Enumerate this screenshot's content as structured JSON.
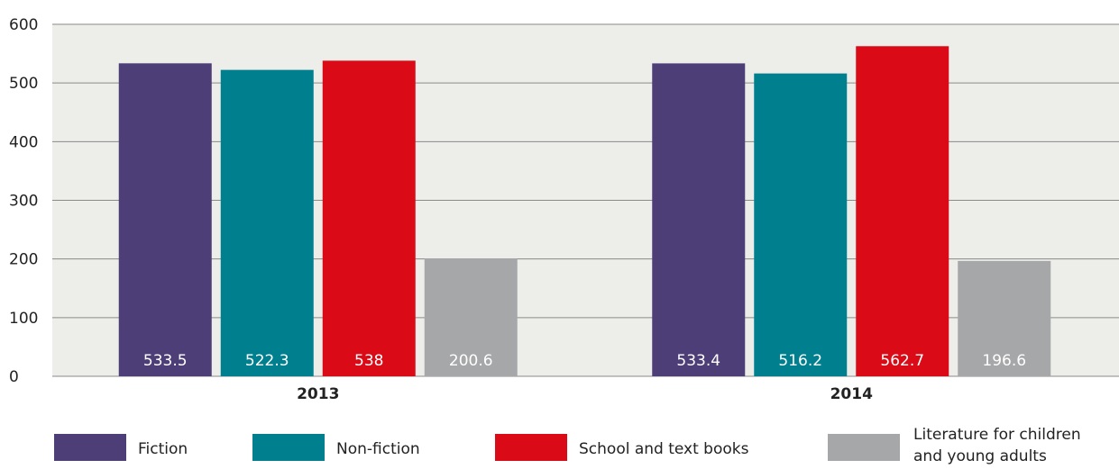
{
  "chart_data": {
    "type": "bar",
    "categories": [
      "2013",
      "2014"
    ],
    "series": [
      {
        "name": "Fiction",
        "color": "#4d3e78",
        "values": [
          533.5,
          533.4
        ],
        "labels": [
          "533.5",
          "533.4"
        ]
      },
      {
        "name": "Non-fiction",
        "color": "#00808f",
        "values": [
          522.3,
          516.2
        ],
        "labels": [
          "522.3",
          "516.2"
        ]
      },
      {
        "name": "School and text books",
        "color": "#db0a17",
        "values": [
          538,
          562.7
        ],
        "labels": [
          "538",
          "562.7"
        ]
      },
      {
        "name": "Literature for children and young adults",
        "name_lines": [
          "Literature for children",
          "and young adults"
        ],
        "color": "#a6a7a9",
        "values": [
          200.6,
          196.6
        ],
        "labels": [
          "200.6",
          "196.6"
        ]
      }
    ],
    "ylim": [
      0,
      600
    ],
    "yticks": [
      0,
      100,
      200,
      300,
      400,
      500,
      600
    ],
    "ytick_labels": [
      "0",
      "100",
      "200",
      "300",
      "400",
      "500",
      "600"
    ],
    "grid": true,
    "plot_background": "#ededea",
    "legend": "bottom"
  }
}
